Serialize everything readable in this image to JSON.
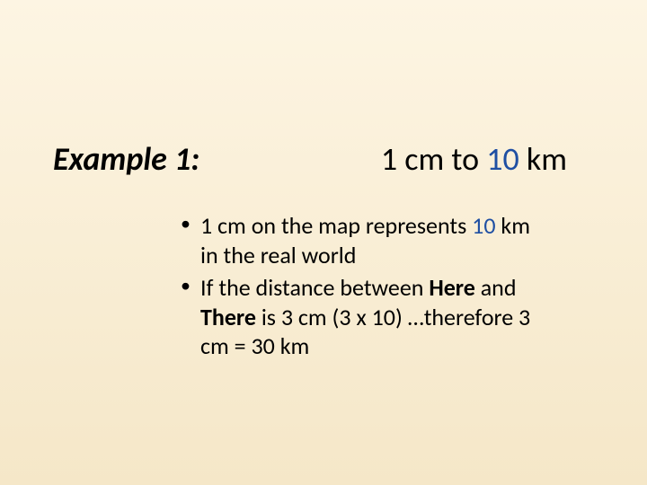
{
  "slide": {
    "background_gradient_top": "#fdf5e3",
    "background_gradient_bottom": "#f5e7c8",
    "text_color": "#000000",
    "highlight_color": "#1f4fa3",
    "title_fontsize": 36,
    "body_fontsize": 26,
    "title_left": "Example 1:",
    "title_right_pre": "1 cm to ",
    "title_right_highlight": "10",
    "title_right_post": " km",
    "bullets": [
      {
        "seg1": "1 cm on the map represents ",
        "seg2_highlight": "10",
        "seg3": " km in the real world"
      },
      {
        "seg1": "If the distance between ",
        "seg2_bold": "Here",
        "seg3": " and ",
        "seg4_bold": "There",
        "seg5": " is 3 cm (3 x 10) …therefore 3 cm = 30 km"
      }
    ]
  }
}
